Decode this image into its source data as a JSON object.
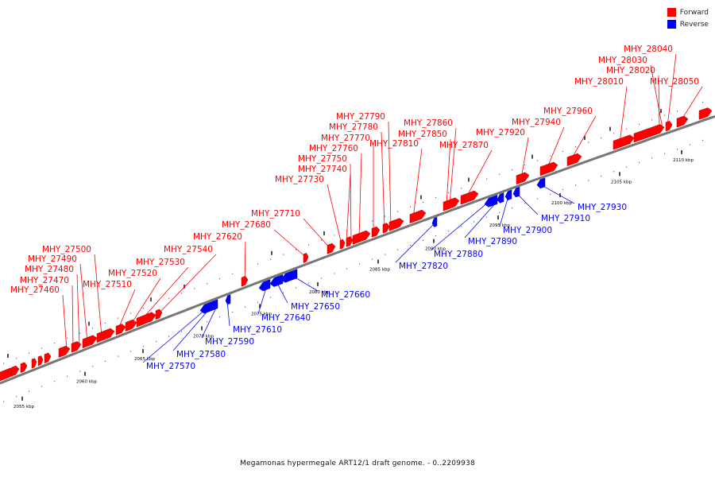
{
  "legend": {
    "forward_label": "Forward",
    "reverse_label": "Reverse",
    "forward_color": "#ff0000",
    "reverse_color": "#0000ff"
  },
  "caption": "Megamonas hypermegale ART12/1 draft genome. - 0..2209938",
  "ticks": [
    "2055 kbp",
    "2060 kbp",
    "2065 kbp",
    "2070 kbp",
    "2075 kbp",
    "2080 kbp",
    "2085 kbp",
    "2090 kbp",
    "2095 kbp",
    "2100 kbp",
    "2105 kbp",
    "2110 kbp"
  ],
  "forward_genes": [
    "MHY_27460",
    "MHY_27470",
    "MHY_27480",
    "MHY_27490",
    "MHY_27500",
    "MHY_27510",
    "MHY_27520",
    "MHY_27530",
    "MHY_27540",
    "MHY_27620",
    "MHY_27680",
    "MHY_27710",
    "MHY_27730",
    "MHY_27740",
    "MHY_27750",
    "MHY_27760",
    "MHY_27770",
    "MHY_27780",
    "MHY_27790",
    "MHY_27810",
    "MHY_27850",
    "MHY_27860",
    "MHY_27870",
    "MHY_27920",
    "MHY_27940",
    "MHY_27960",
    "MHY_28010",
    "MHY_28020",
    "MHY_28030",
    "MHY_28040",
    "MHY_28050"
  ],
  "reverse_genes": [
    "MHY_27570",
    "MHY_27580",
    "MHY_27590",
    "MHY_27610",
    "MHY_27640",
    "MHY_27650",
    "MHY_27660",
    "MHY_27820",
    "MHY_27880",
    "MHY_27890",
    "MHY_27900",
    "MHY_27910",
    "MHY_27930"
  ]
}
